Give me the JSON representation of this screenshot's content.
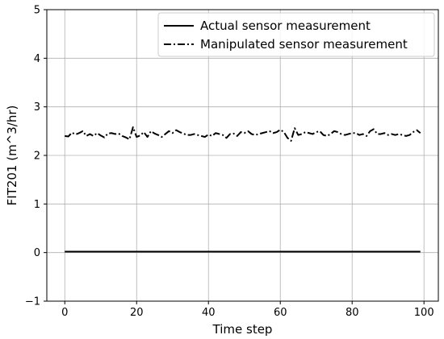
{
  "chart_data": {
    "type": "line",
    "xlabel": "Time step",
    "ylabel": "FIT201 (m^3/hr)",
    "xlim": [
      -5,
      104
    ],
    "ylim": [
      -1,
      5
    ],
    "xticks": [
      "0",
      "20",
      "40",
      "60",
      "80",
      "100"
    ],
    "yticks": [
      "−1",
      "0",
      "1",
      "2",
      "3",
      "4",
      "5"
    ],
    "grid": true,
    "legend_position": "top-right",
    "series": [
      {
        "name": "Actual sensor measurement",
        "style": "solid",
        "color": "#000000",
        "x": [
          0,
          10,
          20,
          30,
          40,
          50,
          60,
          70,
          80,
          90,
          99
        ],
        "values": [
          0.02,
          0.02,
          0.02,
          0.02,
          0.02,
          0.02,
          0.02,
          0.02,
          0.02,
          0.02,
          0.02
        ]
      },
      {
        "name": "Manipulated sensor measurement",
        "style": "dashdot",
        "color": "#000000",
        "x": [
          0,
          1,
          2,
          3,
          4,
          5,
          6,
          7,
          8,
          9,
          10,
          11,
          12,
          13,
          14,
          15,
          16,
          17,
          18,
          19,
          20,
          21,
          22,
          23,
          24,
          25,
          26,
          27,
          28,
          29,
          30,
          31,
          32,
          33,
          34,
          35,
          36,
          37,
          38,
          39,
          40,
          41,
          42,
          43,
          44,
          45,
          46,
          47,
          48,
          49,
          50,
          51,
          52,
          53,
          54,
          55,
          56,
          57,
          58,
          59,
          60,
          61,
          62,
          63,
          64,
          65,
          66,
          67,
          68,
          69,
          70,
          71,
          72,
          73,
          74,
          75,
          76,
          77,
          78,
          79,
          80,
          81,
          82,
          83,
          84,
          85,
          86,
          87,
          88,
          89,
          90,
          91,
          92,
          93,
          94,
          95,
          96,
          97,
          98,
          99
        ],
        "values": [
          2.4,
          2.39,
          2.47,
          2.43,
          2.46,
          2.5,
          2.4,
          2.44,
          2.4,
          2.46,
          2.41,
          2.37,
          2.45,
          2.46,
          2.44,
          2.45,
          2.4,
          2.37,
          2.33,
          2.58,
          2.38,
          2.41,
          2.48,
          2.38,
          2.5,
          2.45,
          2.42,
          2.38,
          2.44,
          2.5,
          2.46,
          2.52,
          2.48,
          2.45,
          2.42,
          2.42,
          2.44,
          2.42,
          2.4,
          2.38,
          2.43,
          2.4,
          2.46,
          2.44,
          2.42,
          2.36,
          2.44,
          2.45,
          2.4,
          2.48,
          2.46,
          2.5,
          2.44,
          2.42,
          2.44,
          2.46,
          2.48,
          2.5,
          2.46,
          2.48,
          2.53,
          2.48,
          2.36,
          2.3,
          2.56,
          2.42,
          2.44,
          2.48,
          2.46,
          2.44,
          2.48,
          2.5,
          2.42,
          2.4,
          2.44,
          2.5,
          2.48,
          2.44,
          2.42,
          2.44,
          2.46,
          2.46,
          2.42,
          2.44,
          2.4,
          2.5,
          2.54,
          2.44,
          2.44,
          2.46,
          2.42,
          2.44,
          2.42,
          2.44,
          2.42,
          2.4,
          2.42,
          2.48,
          2.52,
          2.46
        ]
      }
    ]
  }
}
